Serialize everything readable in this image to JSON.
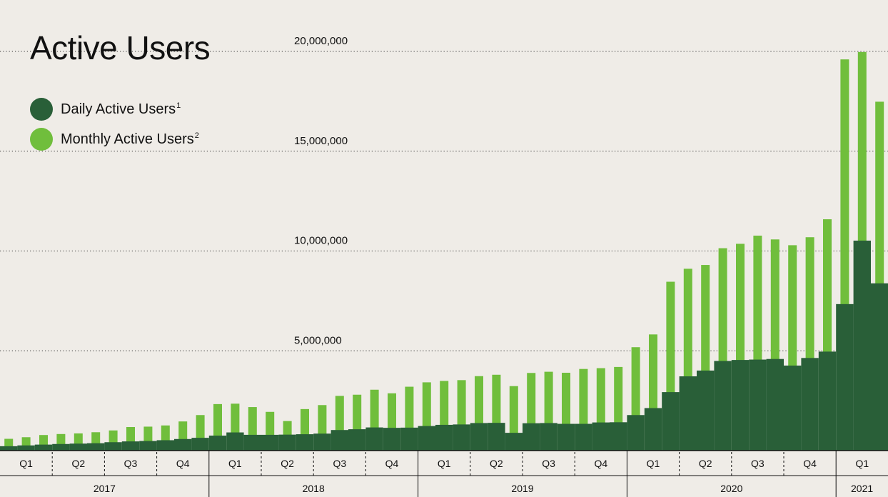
{
  "chart_data": {
    "type": "bar",
    "title": "Active Users",
    "legend": [
      {
        "name": "Daily Active Users",
        "sup": "1",
        "color": "#295f38"
      },
      {
        "name": "Monthly Active Users",
        "sup": "2",
        "color": "#70be3c"
      }
    ],
    "ylim": [
      0,
      20000000
    ],
    "yticks": [
      {
        "value": 5000000,
        "label": "5,000,000"
      },
      {
        "value": 10000000,
        "label": "10,000,000"
      },
      {
        "value": 15000000,
        "label": "15,000,000"
      },
      {
        "value": 20000000,
        "label": "20,000,000"
      }
    ],
    "grid": "dotted horizontal",
    "years": [
      {
        "label": "2017",
        "quarters": [
          "Q1",
          "Q2",
          "Q3",
          "Q4"
        ],
        "months": 12
      },
      {
        "label": "2018",
        "quarters": [
          "Q1",
          "Q2",
          "Q3",
          "Q4"
        ],
        "months": 12
      },
      {
        "label": "2019",
        "quarters": [
          "Q1",
          "Q2",
          "Q3",
          "Q4"
        ],
        "months": 12
      },
      {
        "label": "2020",
        "quarters": [
          "Q1",
          "Q2",
          "Q3",
          "Q4"
        ],
        "months": 12
      },
      {
        "label": "2021",
        "quarters": [
          "Q1"
        ],
        "months": 3
      }
    ],
    "series": [
      {
        "name": "Daily Active Users",
        "values": [
          220000,
          260000,
          300000,
          330000,
          350000,
          370000,
          420000,
          460000,
          480000,
          520000,
          580000,
          640000,
          750000,
          910000,
          790000,
          790000,
          800000,
          820000,
          850000,
          1030000,
          1070000,
          1160000,
          1140000,
          1150000,
          1230000,
          1290000,
          1310000,
          1380000,
          1390000,
          890000,
          1370000,
          1380000,
          1340000,
          1340000,
          1410000,
          1420000,
          1780000,
          2130000,
          2930000,
          3720000,
          4010000,
          4490000,
          4540000,
          4560000,
          4590000,
          4260000,
          4640000,
          4960000,
          7340000,
          10520000,
          8380000
        ]
      },
      {
        "name": "Monthly Active Users",
        "values": [
          590000,
          670000,
          780000,
          830000,
          860000,
          920000,
          1010000,
          1180000,
          1200000,
          1260000,
          1460000,
          1780000,
          2330000,
          2350000,
          2180000,
          1940000,
          1480000,
          2080000,
          2280000,
          2740000,
          2800000,
          3050000,
          2870000,
          3200000,
          3420000,
          3490000,
          3530000,
          3730000,
          3800000,
          3230000,
          3890000,
          3950000,
          3900000,
          4090000,
          4130000,
          4190000,
          5180000,
          5820000,
          8460000,
          9110000,
          9300000,
          10140000,
          10360000,
          10770000,
          10580000,
          10290000,
          10690000,
          11590000,
          19600000,
          19970000,
          17480000
        ]
      }
    ]
  }
}
